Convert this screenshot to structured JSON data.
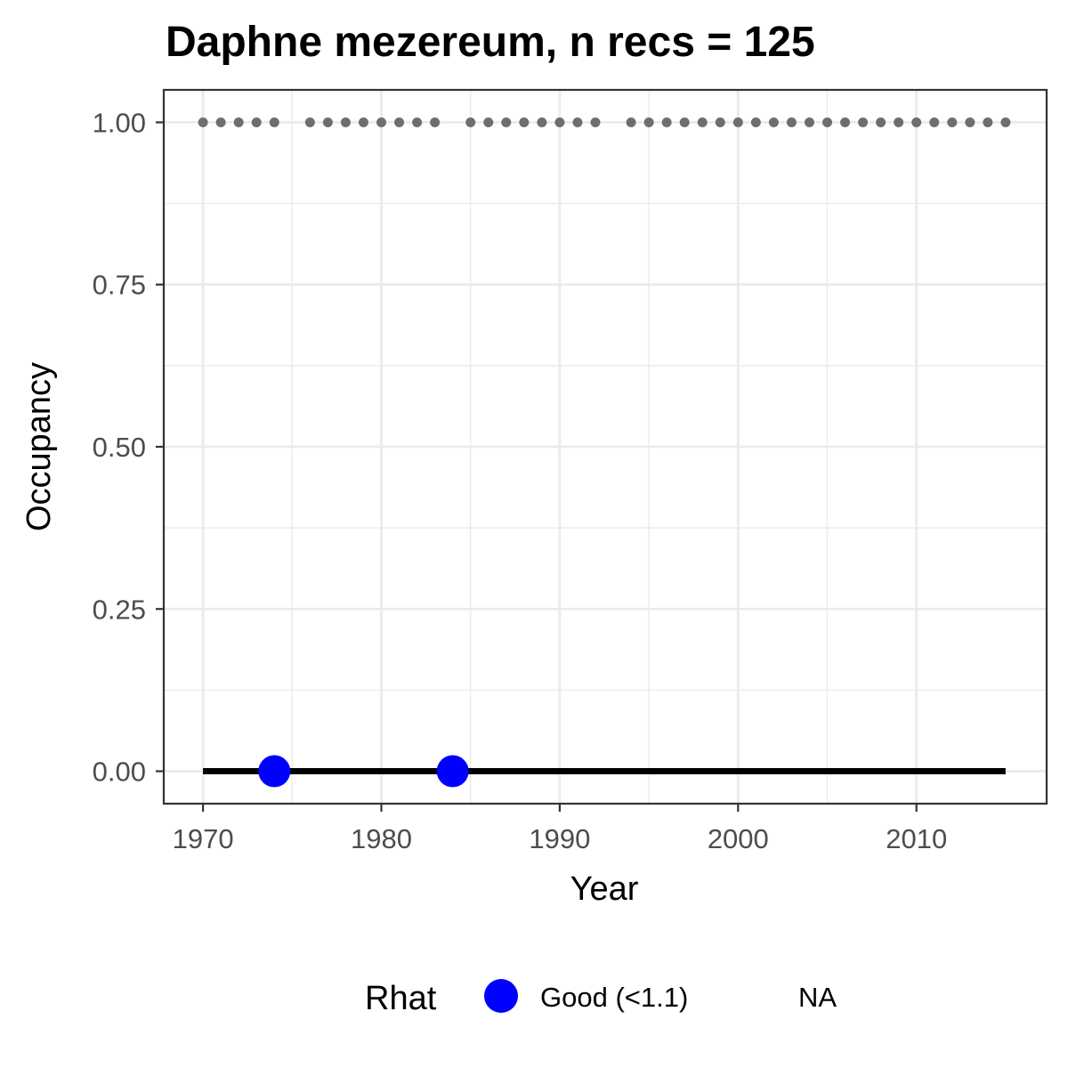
{
  "chart_data": {
    "type": "line",
    "title": "Daphne mezereum, n recs = 125",
    "xlabel": "Year",
    "ylabel": "Occupancy",
    "xlim": [
      1967.8,
      2017.3
    ],
    "ylim": [
      -0.05,
      1.05
    ],
    "x_ticks": [
      1970,
      1980,
      1990,
      2000,
      2010
    ],
    "x_tick_labels": [
      "1970",
      "1980",
      "1990",
      "2000",
      "2010"
    ],
    "y_ticks": [
      0,
      0.25,
      0.5,
      0.75,
      1.0
    ],
    "y_tick_labels": [
      "0.00",
      "0.25",
      "0.50",
      "0.75",
      "1.00"
    ],
    "grid": true,
    "occupancy_line": {
      "x": [
        1970,
        1993,
        2015
      ],
      "y": [
        0.0,
        0.0,
        0.0
      ],
      "color": "#000000"
    },
    "rhat_good_points": {
      "x": [
        1974,
        1984
      ],
      "y": [
        0.0,
        0.0
      ],
      "color": "#0000ff"
    },
    "record_years": {
      "y": 1.0,
      "years": [
        1970,
        1971,
        1972,
        1973,
        1974,
        1976,
        1977,
        1978,
        1979,
        1980,
        1981,
        1982,
        1983,
        1985,
        1986,
        1987,
        1988,
        1989,
        1990,
        1991,
        1992,
        1994,
        1995,
        1996,
        1997,
        1998,
        1999,
        2000,
        2001,
        2002,
        2003,
        2004,
        2005,
        2006,
        2007,
        2008,
        2009,
        2010,
        2011,
        2012,
        2013,
        2014,
        2015
      ],
      "color": "#6e6e6e"
    },
    "legend": {
      "title": "Rhat",
      "position": "bottom",
      "entries": [
        {
          "label": "Good (<1.1)",
          "color": "#0000ff"
        },
        {
          "label": "NA",
          "color": null
        }
      ]
    }
  }
}
